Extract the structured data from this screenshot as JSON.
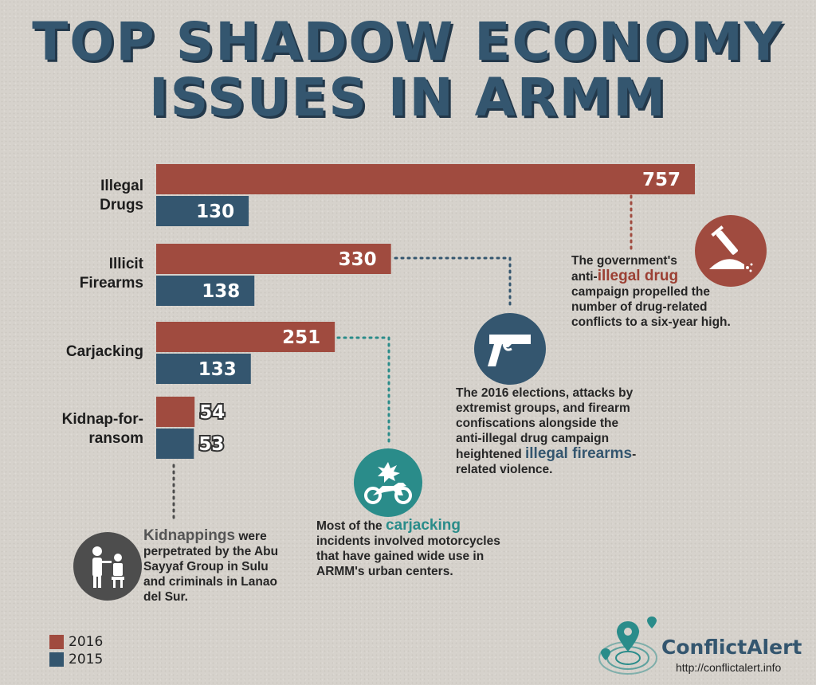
{
  "title_lines": [
    "TOP SHADOW ECONOMY",
    "ISSUES IN ARMM"
  ],
  "colors": {
    "y2016": "#a04b3f",
    "y2015": "#34566f",
    "teal": "#2a8c8a",
    "gray": "#4d4d4d"
  },
  "chart_data": {
    "type": "bar",
    "orientation": "horizontal",
    "categories": [
      "Illegal\nDrugs",
      "Illicit\nFirearms",
      "Carjacking",
      "Kidnap-for-\nransom"
    ],
    "series": [
      {
        "name": "2016",
        "values": [
          757,
          330,
          251,
          54
        ]
      },
      {
        "name": "2015",
        "values": [
          130,
          138,
          133,
          53
        ]
      }
    ],
    "xlim": [
      0,
      757
    ],
    "legend": "bottom-left",
    "grid": false
  },
  "category_labels": {
    "drugs": [
      "Illegal",
      "Drugs"
    ],
    "firearms": [
      "Illicit",
      "Firearms"
    ],
    "carjacking": [
      "Carjacking"
    ],
    "kidnap": [
      "Kidnap-for-",
      "ransom"
    ]
  },
  "legend": [
    {
      "label": "2016"
    },
    {
      "label": "2015"
    }
  ],
  "notes": {
    "drugs": {
      "line1": "The government's",
      "pre": "anti-",
      "highlight": "illegal drug",
      "rest": "campaign propelled the number of drug-related conflicts to a six-year high.",
      "icon": "syringe-icon"
    },
    "firearms": {
      "pre": "The 2016 elections, attacks by extremist groups, and firearm confiscations alongside the anti-illegal drug campaign heightened",
      "highlight": "illegal firearms",
      "rest": "-related violence.",
      "icon": "pistol-icon"
    },
    "carjacking": {
      "pre": "Most of the",
      "highlight": "carjacking",
      "rest": "incidents involved motorcycles that have gained wide use in ARMM's urban centers.",
      "icon": "motorcycle-icon"
    },
    "kidnap": {
      "highlight": "Kidnappings",
      "rest": "were perpetrated by the Abu Sayyaf Group in Sulu and criminals in Lanao del Sur.",
      "icon": "kidnapping-icon"
    }
  },
  "brand": {
    "name": "ConflictAlert",
    "url": "http://conflictalert.info",
    "icon": "location-pin-icon"
  }
}
